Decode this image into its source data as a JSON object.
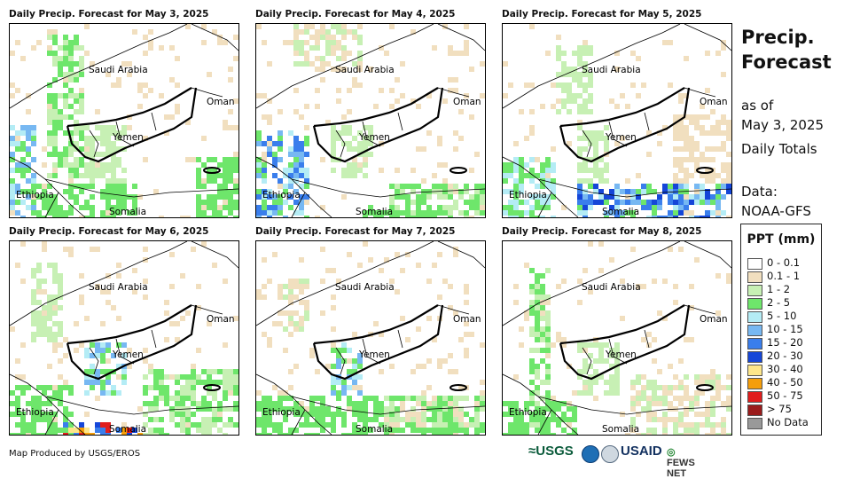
{
  "panels": [
    {
      "title": "Daily Precip. Forecast for May 3, 2025",
      "seed": 3
    },
    {
      "title": "Daily Precip. Forecast for May 4, 2025",
      "seed": 4
    },
    {
      "title": "Daily Precip. Forecast for May 5, 2025",
      "seed": 5
    },
    {
      "title": "Daily Precip. Forecast for May 6, 2025",
      "seed": 6
    },
    {
      "title": "Daily Precip. Forecast for May 7, 2025",
      "seed": 7
    },
    {
      "title": "Daily Precip. Forecast for May 8, 2025",
      "seed": 8
    }
  ],
  "map_labels": {
    "saudi": "Saudi Arabia",
    "oman": "Oman",
    "yemen": "Yemen",
    "ethiopia": "Ethiopia",
    "somalia": "Somalia"
  },
  "side": {
    "title_line1": "Precip.",
    "title_line2": "Forecast",
    "asof_line1": "as of",
    "asof_line2": "May 3, 2025",
    "totals": "Daily Totals",
    "data_label": "Data:",
    "data_source": "NOAA-GFS"
  },
  "legend": {
    "title": "PPT (mm)",
    "items": [
      {
        "label": "0 - 0.1",
        "color": "#ffffff"
      },
      {
        "label": "0.1 - 1",
        "color": "#f1dfbf"
      },
      {
        "label": "1 - 2",
        "color": "#c7f0b4"
      },
      {
        "label": "2 - 5",
        "color": "#6ee66b"
      },
      {
        "label": "5 - 10",
        "color": "#b4ecf5"
      },
      {
        "label": "10 - 15",
        "color": "#77b8f2"
      },
      {
        "label": "15 - 20",
        "color": "#3a7eec"
      },
      {
        "label": "20 - 30",
        "color": "#1546d8"
      },
      {
        "label": "30 - 40",
        "color": "#fde68a"
      },
      {
        "label": "40 - 50",
        "color": "#f59e0b"
      },
      {
        "label": "50 - 75",
        "color": "#e11d1d"
      },
      {
        "label": "> 75",
        "color": "#9b1c1c"
      },
      {
        "label": "No Data",
        "color": "#999999"
      }
    ]
  },
  "footer": {
    "credit": "Map Produced by USGS/EROS",
    "logo_usgs": "USGS",
    "logo_usaid": "USAID",
    "logo_fews": "FEWS NET"
  }
}
